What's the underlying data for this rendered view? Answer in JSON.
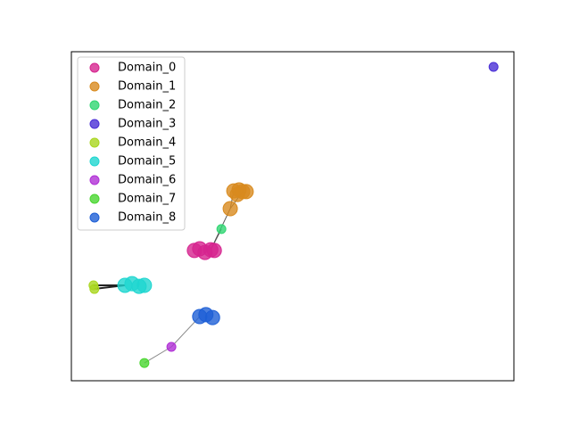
{
  "chart_data": {
    "type": "scatter",
    "xlim": [
      0,
      100
    ],
    "ylim": [
      0,
      100
    ],
    "series": [
      {
        "name": "Domain_0",
        "color": "#d6248f",
        "x": [
          27.8,
          29.0,
          30.2,
          31.5,
          32.3
        ],
        "values": [
          39.6,
          40.1,
          39.0,
          39.8,
          39.6
        ]
      },
      {
        "name": "Domain_1",
        "color": "#d88a1e",
        "x": [
          35.9,
          36.7,
          37.9,
          38.7,
          39.5,
          37.5
        ],
        "values": [
          52.3,
          57.7,
          58.0,
          57.5,
          57.5,
          56.6
        ]
      },
      {
        "name": "Domain_2",
        "color": "#2fd672",
        "x": [
          33.9
        ],
        "values": [
          46.1
        ]
      },
      {
        "name": "Domain_3",
        "color": "#4a2fd6",
        "x": [
          95.4
        ],
        "values": [
          95.4
        ]
      },
      {
        "name": "Domain_4",
        "color": "#a9d61e",
        "x": [
          5.0,
          5.2
        ],
        "values": [
          29.0,
          27.9
        ]
      },
      {
        "name": "Domain_5",
        "color": "#1ed6d0",
        "x": [
          12.1,
          13.7,
          15.3,
          16.5
        ],
        "values": [
          29.0,
          29.5,
          28.7,
          29.0
        ]
      },
      {
        "name": "Domain_6",
        "color": "#b02fd6",
        "x": [
          22.6
        ],
        "values": [
          10.3
        ]
      },
      {
        "name": "Domain_7",
        "color": "#49d62f",
        "x": [
          16.5
        ],
        "values": [
          5.4
        ]
      },
      {
        "name": "Domain_8",
        "color": "#1e5fd6",
        "x": [
          29.0,
          30.4,
          31.9
        ],
        "values": [
          19.5,
          20.1,
          19.2
        ]
      }
    ]
  }
}
